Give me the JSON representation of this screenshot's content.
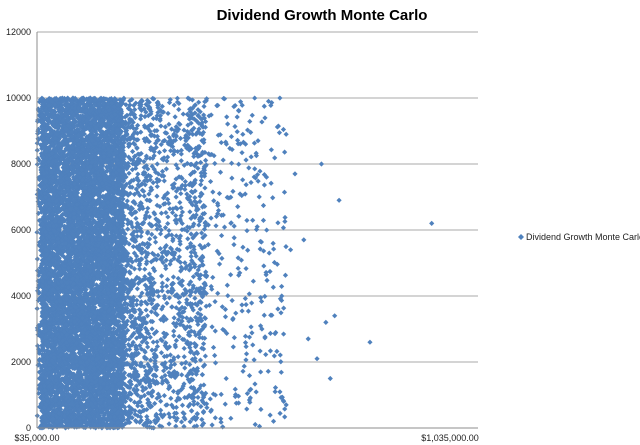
{
  "chart_data": {
    "type": "scatter",
    "title": "Dividend Growth Monte Carlo",
    "xlabel": "",
    "ylabel": "",
    "xlim": [
      35000,
      1035000
    ],
    "ylim": [
      0,
      12000
    ],
    "x_tick_labels": [
      "$35,000.00",
      "$1,035,000.00"
    ],
    "y_ticks": [
      0,
      2000,
      4000,
      6000,
      8000,
      10000,
      12000
    ],
    "grid": "horizontal",
    "legend_position": "right",
    "series": [
      {
        "name": "Dividend Growth Monte Carlo",
        "color": "#4F81BD",
        "marker": "diamond",
        "point_count_approx": 10000,
        "dense_core_x_range": [
          45000,
          230000
        ],
        "y_range": [
          0,
          10000
        ],
        "outliers": [
          {
            "x": 930000,
            "y": 6200
          },
          {
            "x": 720000,
            "y": 6900
          },
          {
            "x": 680000,
            "y": 8000
          },
          {
            "x": 790000,
            "y": 2600
          },
          {
            "x": 710000,
            "y": 3400
          },
          {
            "x": 700000,
            "y": 1500
          },
          {
            "x": 690000,
            "y": 3200
          },
          {
            "x": 650000,
            "y": 2700
          },
          {
            "x": 670000,
            "y": 2100
          },
          {
            "x": 620000,
            "y": 7700
          },
          {
            "x": 600000,
            "y": 8900
          },
          {
            "x": 610000,
            "y": 5400
          },
          {
            "x": 640000,
            "y": 5700
          },
          {
            "x": 590000,
            "y": 4000
          },
          {
            "x": 575000,
            "y": 1100
          },
          {
            "x": 600000,
            "y": 700
          },
          {
            "x": 560000,
            "y": 9900
          },
          {
            "x": 545000,
            "y": 3000
          }
        ]
      }
    ]
  }
}
